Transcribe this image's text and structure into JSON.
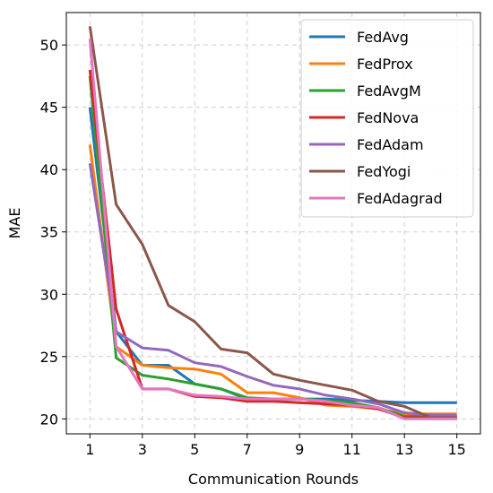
{
  "chart_data": {
    "type": "line",
    "title": "",
    "xlabel": "Communication Rounds",
    "ylabel": "MAE",
    "x": [
      1,
      2,
      3,
      4,
      5,
      6,
      7,
      8,
      9,
      10,
      11,
      12,
      13,
      14,
      15
    ],
    "xticks": [
      1,
      3,
      5,
      7,
      9,
      11,
      13,
      15
    ],
    "yticks": [
      20,
      25,
      30,
      35,
      40,
      45,
      50
    ],
    "xlim": [
      0.1,
      15.9
    ],
    "ylim": [
      18.8,
      52.6
    ],
    "grid": true,
    "legend_position": "top-right",
    "series": [
      {
        "name": "FedAvg",
        "color": "#1f77b4",
        "values": [
          45.0,
          27.0,
          24.3,
          24.3,
          22.8,
          22.4,
          21.6,
          21.6,
          21.6,
          21.6,
          21.5,
          21.4,
          21.3,
          21.3,
          21.3
        ]
      },
      {
        "name": "FedProx",
        "color": "#ff7f0e",
        "values": [
          42.0,
          25.8,
          24.3,
          24.1,
          24.0,
          23.6,
          22.1,
          22.1,
          21.7,
          21.1,
          21.0,
          20.8,
          20.4,
          20.4,
          20.4
        ]
      },
      {
        "name": "FedAvgM",
        "color": "#2ca02c",
        "values": [
          47.5,
          24.9,
          23.5,
          23.2,
          22.8,
          22.4,
          21.7,
          21.6,
          21.6,
          21.5,
          21.3,
          20.9,
          20.2,
          20.2,
          20.2
        ]
      },
      {
        "name": "FedNova",
        "color": "#d62728",
        "values": [
          48.0,
          28.8,
          22.4,
          22.4,
          21.8,
          21.7,
          21.4,
          21.4,
          21.3,
          21.2,
          21.1,
          20.8,
          20.1,
          20.1,
          20.1
        ]
      },
      {
        "name": "FedAdam",
        "color": "#9467bd",
        "values": [
          40.5,
          27.0,
          25.7,
          25.5,
          24.5,
          24.2,
          23.4,
          22.7,
          22.4,
          21.9,
          21.6,
          21.2,
          20.5,
          20.3,
          20.3
        ]
      },
      {
        "name": "FedYogi",
        "color": "#8c564b",
        "values": [
          51.5,
          37.2,
          34.0,
          29.1,
          27.8,
          25.6,
          25.3,
          23.6,
          23.1,
          22.7,
          22.3,
          21.4,
          21.0,
          20.1,
          20.1
        ]
      },
      {
        "name": "FedAdagrad",
        "color": "#e377c2",
        "values": [
          50.5,
          25.8,
          22.4,
          22.4,
          21.9,
          21.8,
          21.6,
          21.6,
          21.6,
          21.4,
          21.1,
          20.9,
          20.0,
          20.0,
          20.0
        ]
      }
    ]
  }
}
